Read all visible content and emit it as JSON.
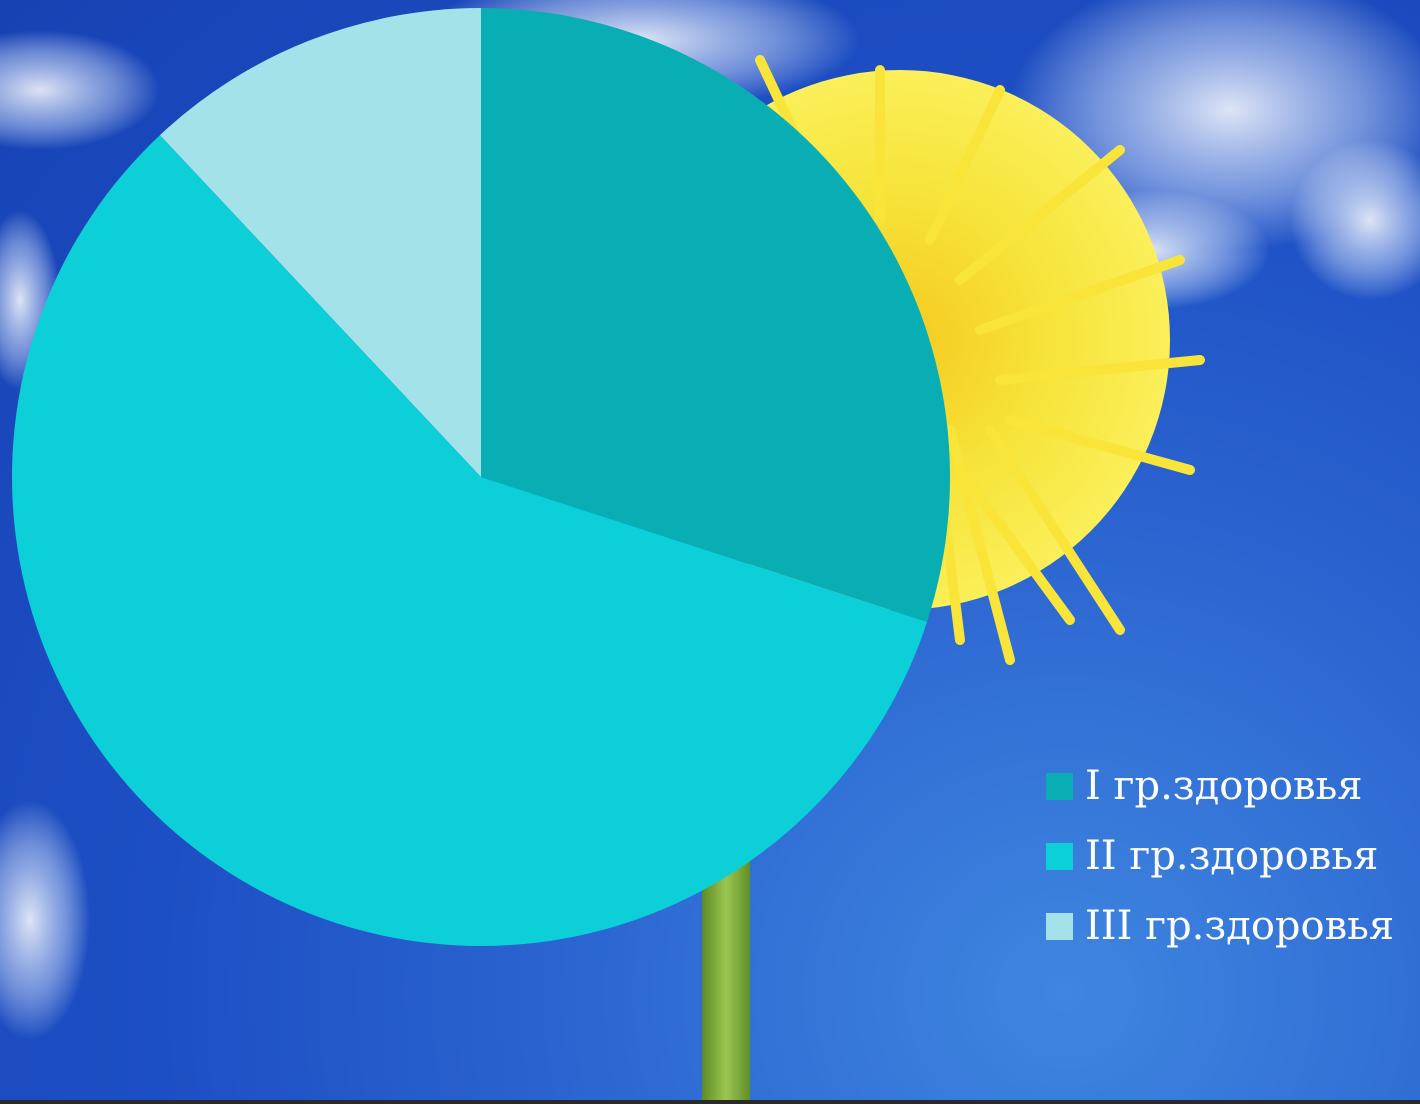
{
  "background": {
    "description_icons": [
      "cloud-icon",
      "dandelion-flower-icon"
    ],
    "sky_color": "#1d4fc4",
    "flower_color": "#f3e431",
    "stem_color": "#7ba83a"
  },
  "chart_data": {
    "type": "pie",
    "title": "",
    "categories": [
      "I гр.здоровья",
      "II гр.здоровья",
      "III гр.здоровья"
    ],
    "values": [
      30,
      58,
      12
    ],
    "colors": [
      "#09aeb4",
      "#0ccfd8",
      "#a3e2e8"
    ],
    "start_angle_deg": 0,
    "direction": "clockwise",
    "legend_position": "right-bottom"
  },
  "legend": {
    "items": [
      {
        "label": "I гр.здоровья",
        "color": "#09aeb4"
      },
      {
        "label": "II гр.здоровья",
        "color": "#0ccfd8"
      },
      {
        "label": "III гр.здоровья",
        "color": "#a3e2e8"
      }
    ]
  }
}
